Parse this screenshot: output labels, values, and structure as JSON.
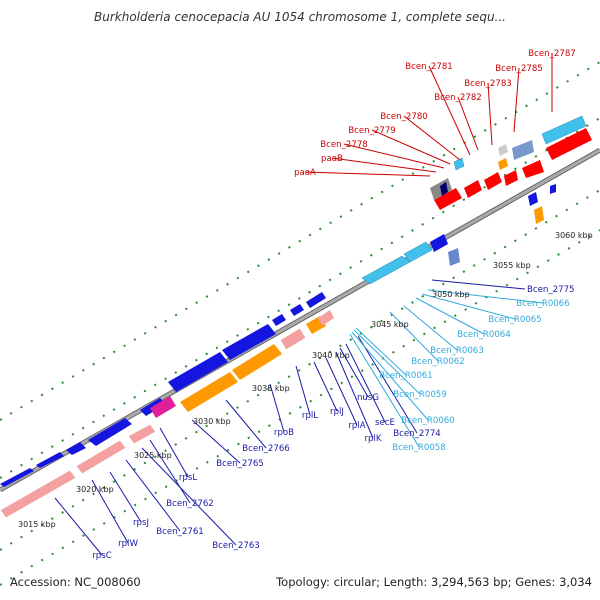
{
  "title": "Burkholderia cenocepacia AU 1054 chromosome 1, complete sequ...",
  "footer": {
    "accession": "Accession: NC_008060",
    "info": "Topology: circular; Length: 3,294,563 bp; Genes: 3,034"
  },
  "colors": {
    "red_label": "#cc0000",
    "blue_label": "#1a1aaa",
    "cyan_label": "#33aadd",
    "backbone": "#999999",
    "tick": "#2e8b2e"
  },
  "ticks": [
    {
      "label": "3015 kbp",
      "value": 3015
    },
    {
      "label": "3020 kbp",
      "value": 3020
    },
    {
      "label": "3025 kbp",
      "value": 3025
    },
    {
      "label": "3030 kbp",
      "value": 3030
    },
    {
      "label": "3035 kbp",
      "value": 3035
    },
    {
      "label": "3040 kbp",
      "value": 3040
    },
    {
      "label": "3045 kbp",
      "value": 3045
    },
    {
      "label": "3050 kbp",
      "value": 3050
    },
    {
      "label": "3055 kbp",
      "value": 3055
    },
    {
      "label": "3060 kbp",
      "value": 3060
    }
  ],
  "labels_top": [
    "Bcen_2787",
    "Bcen_2785",
    "Bcen_2783",
    "Bcen_2782",
    "Bcen_2781",
    "Bcen_2780",
    "Bcen_2779",
    "Bcen_2778",
    "paaB",
    "paaA"
  ],
  "labels_blue": [
    "rpsC",
    "rplW",
    "rpsJ",
    "Bcen_2761",
    "Bcen_2763",
    "Bcen_2762",
    "rpsL",
    "Bcen_2765",
    "Bcen_2766",
    "rpoB",
    "rplL",
    "rplJ",
    "rplA",
    "rplK",
    "secE",
    "nusG",
    "Bcen_2774",
    "Bcen_2775"
  ],
  "labels_cyan": [
    "Bcen_R0058",
    "Bcen_R0060",
    "Bcen_R0059",
    "Bcen_R0061",
    "Bcen_R0062",
    "Bcen_R0063",
    "Bcen_R0064",
    "Bcen_R0065",
    "Bcen_R0066"
  ]
}
